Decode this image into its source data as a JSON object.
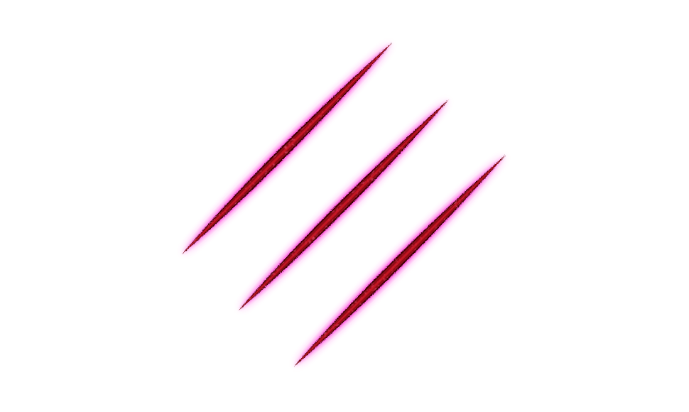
{
  "scene": {
    "subject": "claw-marks-icon",
    "mark_count": 3,
    "colors": {
      "background": "#ffffff",
      "slash_core": "#8e0a14",
      "slash_dark": "#3a0406",
      "slash_highlight": "#d81a2a",
      "glow": "#ff2bd6"
    }
  }
}
